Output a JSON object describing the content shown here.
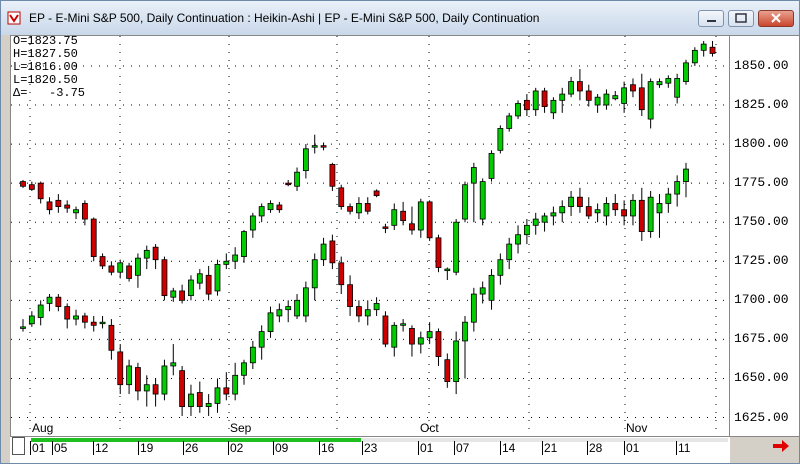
{
  "window": {
    "title": "EP - E-Mini S&P 500, Daily Continuation : Heikin-Ashi   |   EP - E-Mini S&P 500, Daily Continuation"
  },
  "ohlc": {
    "open": "O=1823.75",
    "high": "H=1827.50",
    "low": "L=1816.00",
    "close": "L=1820.50",
    "delta": "Δ=   -3.75"
  },
  "months": [
    "Aug",
    "Sep",
    "Oct",
    "Nov"
  ],
  "dates": [
    "01",
    "05",
    "12",
    "19",
    "26",
    "02",
    "09",
    "16",
    "23",
    "01",
    "07",
    "14",
    "21",
    "28",
    "01",
    "11"
  ],
  "colors": {
    "up": "#00cc00",
    "down": "#cc0000",
    "grid": "#000000"
  },
  "chart_data": {
    "type": "candlestick",
    "title": "EP - E-Mini S&P 500, Daily Continuation",
    "ylim": [
      1612,
      1868
    ],
    "yticks": [
      1625.0,
      1650.0,
      1675.0,
      1700.0,
      1725.0,
      1750.0,
      1775.0,
      1800.0,
      1825.0,
      1850.0
    ],
    "ytick_labels": [
      "1625.00",
      "1650.00",
      "1675.00",
      "1700.00",
      "1725.00",
      "1750.00",
      "1775.00",
      "1800.00",
      "1825.00",
      "1850.00"
    ],
    "grid": true,
    "series": [
      {
        "name": "Heikin-Ashi",
        "bars": [
          [
            1776,
            1777,
            1772,
            1773
          ],
          [
            1774,
            1776,
            1770,
            1771
          ],
          [
            1775,
            1776,
            1762,
            1765
          ],
          [
            1763,
            1766,
            1755,
            1758
          ],
          [
            1764,
            1768,
            1756,
            1760
          ],
          [
            1761,
            1764,
            1756,
            1759
          ],
          [
            1756,
            1760,
            1752,
            1758
          ],
          [
            1762,
            1764,
            1748,
            1752
          ],
          [
            1752,
            1753,
            1725,
            1728
          ],
          [
            1728,
            1730,
            1720,
            1722
          ],
          [
            1722,
            1725,
            1716,
            1718
          ],
          [
            1718,
            1726,
            1714,
            1724
          ],
          [
            1722,
            1724,
            1712,
            1714
          ],
          [
            1716,
            1730,
            1708,
            1727
          ],
          [
            1727,
            1735,
            1720,
            1732
          ],
          [
            1734,
            1736,
            1720,
            1726
          ],
          [
            1726,
            1728,
            1700,
            1703
          ],
          [
            1702,
            1708,
            1699,
            1706
          ],
          [
            1706,
            1710,
            1698,
            1700
          ],
          [
            1703,
            1716,
            1700,
            1713
          ],
          [
            1711,
            1720,
            1707,
            1717
          ],
          [
            1716,
            1722,
            1700,
            1704
          ],
          [
            1706,
            1726,
            1703,
            1723
          ],
          [
            1723,
            1730,
            1720,
            1725
          ],
          [
            1725,
            1734,
            1720,
            1729
          ],
          [
            1728,
            1745,
            1724,
            1744
          ],
          [
            1745,
            1756,
            1740,
            1754
          ],
          [
            1754,
            1762,
            1750,
            1760
          ],
          [
            1758,
            1764,
            1756,
            1762
          ],
          [
            1761,
            1763,
            1756,
            1758
          ],
          [
            1775,
            1777,
            1773,
            1774
          ],
          [
            1773,
            1785,
            1770,
            1782
          ],
          [
            1783,
            1800,
            1778,
            1797
          ],
          [
            1798,
            1806,
            1794,
            1799
          ],
          [
            1799,
            1801,
            1796,
            1798
          ],
          [
            1787,
            1788,
            1770,
            1773
          ],
          [
            1772,
            1774,
            1758,
            1760
          ],
          [
            1760,
            1762,
            1755,
            1757
          ],
          [
            1756,
            1766,
            1752,
            1762
          ],
          [
            1762,
            1766,
            1755,
            1757
          ],
          [
            1770,
            1771,
            1766,
            1767
          ],
          [
            1747,
            1749,
            1743,
            1746
          ],
          [
            1748,
            1762,
            1745,
            1758
          ],
          [
            1757,
            1763,
            1748,
            1751
          ],
          [
            1749,
            1760,
            1742,
            1745
          ],
          [
            1745,
            1765,
            1740,
            1763
          ],
          [
            1763,
            1764,
            1738,
            1740
          ],
          [
            1740,
            1742,
            1718,
            1721
          ],
          [
            1719,
            1721,
            1713,
            1720
          ],
          [
            1718,
            1752,
            1716,
            1750
          ],
          [
            1752,
            1776,
            1750,
            1774
          ],
          [
            1775,
            1788,
            1750,
            1785
          ],
          [
            1752,
            1778,
            1748,
            1776
          ],
          [
            1778,
            1796,
            1776,
            1794
          ],
          [
            1796,
            1812,
            1794,
            1810
          ],
          [
            1810,
            1820,
            1808,
            1818
          ],
          [
            1818,
            1828,
            1816,
            1826
          ],
          [
            1828,
            1832,
            1818,
            1822
          ],
          [
            1822,
            1836,
            1818,
            1834
          ],
          [
            1834,
            1836,
            1820,
            1824
          ],
          [
            1820,
            1830,
            1816,
            1828
          ],
          [
            1828,
            1836,
            1820,
            1832
          ],
          [
            1832,
            1843,
            1830,
            1840
          ],
          [
            1840,
            1848,
            1828,
            1834
          ],
          [
            1834,
            1838,
            1824,
            1828
          ],
          [
            1825,
            1832,
            1820,
            1830
          ],
          [
            1825,
            1835,
            1822,
            1832
          ],
          [
            1829,
            1834,
            1828,
            1831
          ],
          [
            1826,
            1840,
            1820,
            1836
          ],
          [
            1838,
            1842,
            1830,
            1834
          ],
          [
            1836,
            1845,
            1818,
            1822
          ],
          [
            1816,
            1842,
            1810,
            1840
          ],
          [
            1838,
            1842,
            1836,
            1840
          ],
          [
            1839,
            1844,
            1836,
            1842
          ],
          [
            1830,
            1845,
            1826,
            1842
          ],
          [
            1840,
            1854,
            1838,
            1852
          ],
          [
            1852,
            1862,
            1850,
            1860
          ],
          [
            1860,
            1866,
            1856,
            1864
          ],
          [
            1862,
            1866,
            1856,
            1858
          ]
        ]
      },
      {
        "name": "Daily Continuation",
        "bars": [
          [
            1682,
            1688,
            1680,
            1683
          ],
          [
            1685,
            1693,
            1683,
            1690
          ],
          [
            1689,
            1700,
            1684,
            1697
          ],
          [
            1698,
            1704,
            1693,
            1702
          ],
          [
            1702,
            1704,
            1693,
            1696
          ],
          [
            1696,
            1698,
            1682,
            1688
          ],
          [
            1688,
            1694,
            1684,
            1690
          ],
          [
            1690,
            1692,
            1682,
            1686
          ],
          [
            1686,
            1690,
            1680,
            1684
          ],
          [
            1686,
            1690,
            1682,
            1686
          ],
          [
            1684,
            1688,
            1662,
            1668
          ],
          [
            1667,
            1672,
            1640,
            1646
          ],
          [
            1646,
            1662,
            1640,
            1658
          ],
          [
            1657,
            1660,
            1636,
            1642
          ],
          [
            1642,
            1652,
            1632,
            1646
          ],
          [
            1646,
            1650,
            1632,
            1640
          ],
          [
            1640,
            1662,
            1636,
            1658
          ],
          [
            1658,
            1672,
            1652,
            1660
          ],
          [
            1655,
            1658,
            1626,
            1632
          ],
          [
            1632,
            1646,
            1626,
            1640
          ],
          [
            1641,
            1648,
            1628,
            1632
          ],
          [
            1632,
            1640,
            1626,
            1634
          ],
          [
            1634,
            1650,
            1628,
            1644
          ],
          [
            1644,
            1654,
            1636,
            1640
          ],
          [
            1640,
            1660,
            1636,
            1652
          ],
          [
            1652,
            1662,
            1646,
            1660
          ],
          [
            1660,
            1674,
            1656,
            1670
          ],
          [
            1670,
            1684,
            1662,
            1680
          ],
          [
            1680,
            1696,
            1676,
            1692
          ],
          [
            1690,
            1698,
            1686,
            1694
          ],
          [
            1694,
            1700,
            1686,
            1696
          ],
          [
            1690,
            1704,
            1688,
            1700
          ],
          [
            1690,
            1712,
            1686,
            1708
          ],
          [
            1708,
            1730,
            1700,
            1726
          ],
          [
            1726,
            1740,
            1722,
            1736
          ],
          [
            1738,
            1742,
            1720,
            1724
          ],
          [
            1724,
            1728,
            1704,
            1710
          ],
          [
            1710,
            1716,
            1690,
            1696
          ],
          [
            1696,
            1700,
            1686,
            1690
          ],
          [
            1690,
            1700,
            1684,
            1694
          ],
          [
            1694,
            1702,
            1690,
            1698
          ],
          [
            1690,
            1693,
            1670,
            1672
          ],
          [
            1670,
            1686,
            1664,
            1684
          ],
          [
            1684,
            1688,
            1680,
            1685
          ],
          [
            1682,
            1684,
            1664,
            1672
          ],
          [
            1672,
            1680,
            1666,
            1676
          ],
          [
            1676,
            1686,
            1672,
            1680
          ],
          [
            1680,
            1682,
            1658,
            1664
          ],
          [
            1662,
            1666,
            1644,
            1648
          ],
          [
            1648,
            1680,
            1640,
            1674
          ],
          [
            1674,
            1690,
            1650,
            1686
          ],
          [
            1686,
            1708,
            1680,
            1704
          ],
          [
            1704,
            1712,
            1698,
            1708
          ],
          [
            1700,
            1720,
            1694,
            1716
          ],
          [
            1716,
            1730,
            1710,
            1726
          ],
          [
            1726,
            1740,
            1720,
            1736
          ],
          [
            1736,
            1748,
            1730,
            1742
          ],
          [
            1742,
            1752,
            1736,
            1748
          ],
          [
            1748,
            1756,
            1742,
            1752
          ],
          [
            1750,
            1756,
            1744,
            1754
          ],
          [
            1754,
            1760,
            1748,
            1756
          ],
          [
            1756,
            1764,
            1750,
            1760
          ],
          [
            1760,
            1770,
            1754,
            1766
          ],
          [
            1766,
            1772,
            1756,
            1760
          ],
          [
            1760,
            1766,
            1752,
            1754
          ],
          [
            1756,
            1762,
            1750,
            1758
          ],
          [
            1754,
            1766,
            1748,
            1762
          ],
          [
            1762,
            1768,
            1754,
            1758
          ],
          [
            1758,
            1764,
            1748,
            1754
          ],
          [
            1754,
            1768,
            1748,
            1764
          ],
          [
            1764,
            1772,
            1738,
            1744
          ],
          [
            1744,
            1770,
            1740,
            1766
          ],
          [
            1756,
            1768,
            1740,
            1762
          ],
          [
            1762,
            1772,
            1756,
            1768
          ],
          [
            1768,
            1780,
            1760,
            1776
          ],
          [
            1776,
            1788,
            1766,
            1784
          ]
        ]
      }
    ]
  }
}
